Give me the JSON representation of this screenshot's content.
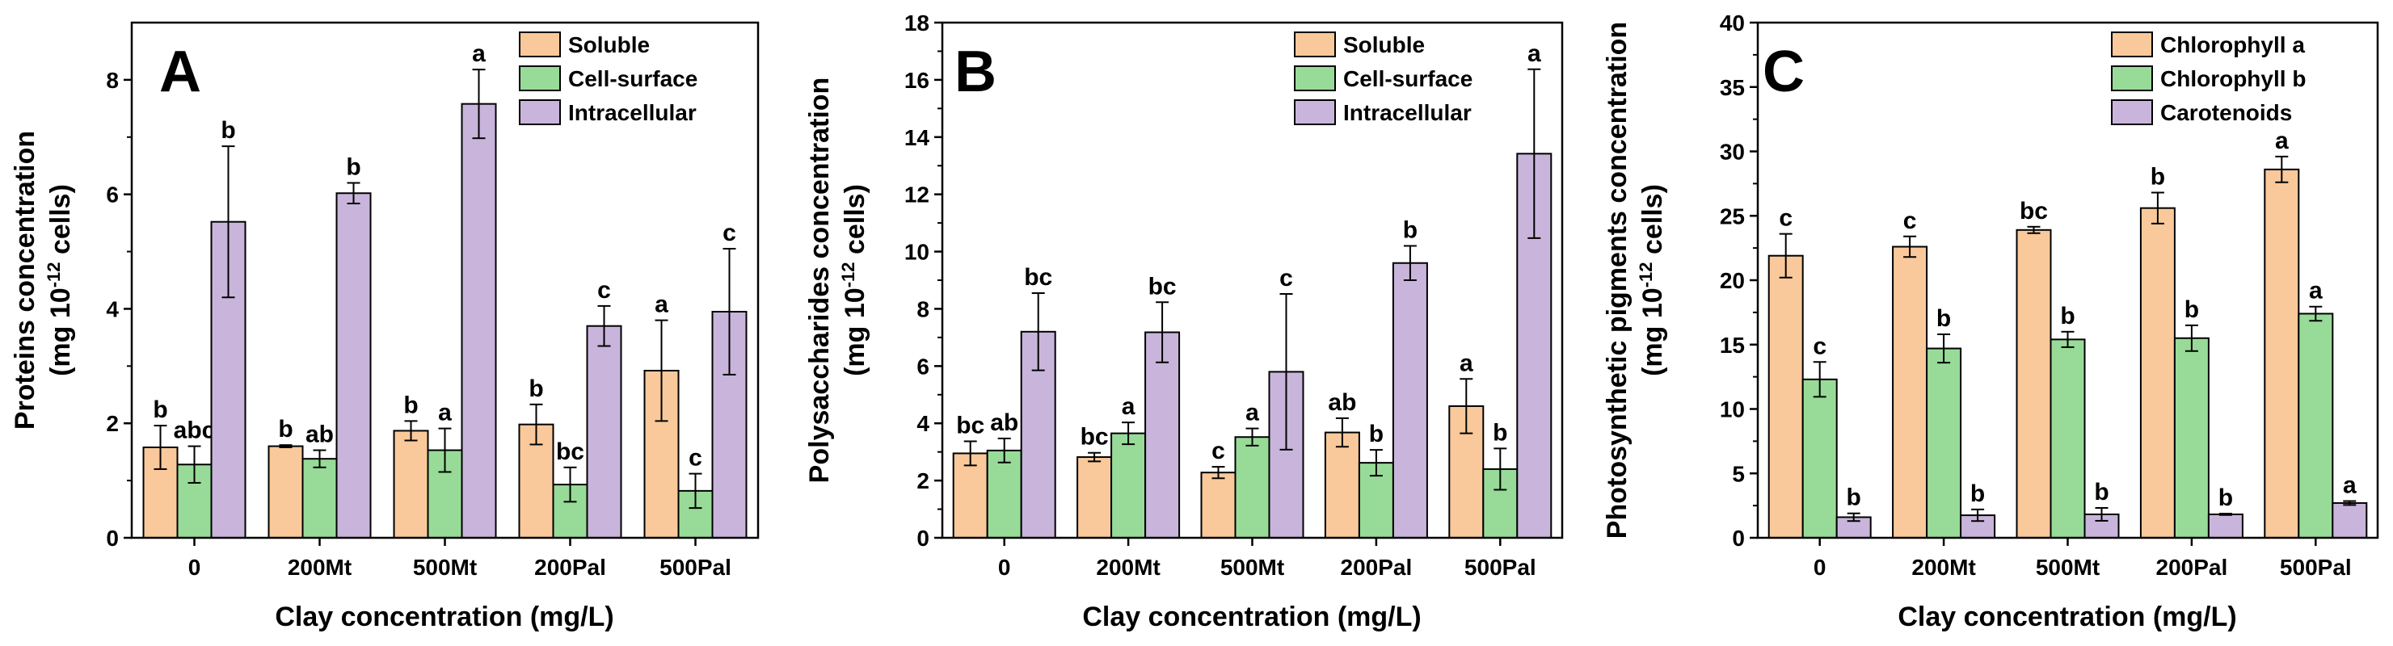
{
  "colors": {
    "soluble": "#F9C99B",
    "cell_surface": "#98DB98",
    "intracellular": "#C9B5DB",
    "chlorophyll_a": "#F9C99B",
    "chlorophyll_b": "#98DB98",
    "carotenoids": "#C9B5DB"
  },
  "xlabel": "Clay concentration (mg/L)",
  "chart_data": [
    {
      "type": "bar",
      "panel": "A",
      "title": "",
      "xlabel": "Clay concentration (mg/L)",
      "ylabel_main": "Proteins concentration",
      "ylabel_unit_prefix": "(mg 10",
      "ylabel_unit_sup": "-12",
      "ylabel_unit_suffix": " cells)",
      "ylim": [
        0,
        9
      ],
      "yticks": [
        0,
        2,
        4,
        6,
        8
      ],
      "ytick_labels": [
        "0",
        "2",
        "4",
        "6",
        "8"
      ],
      "categories": [
        "0",
        "200Mt",
        "500Mt",
        "200Pal",
        "500Pal"
      ],
      "series": [
        {
          "name": "Soluble",
          "color_key": "soluble",
          "values": [
            1.58,
            1.6,
            1.87,
            1.98,
            2.92
          ],
          "errors": [
            0.38,
            0.02,
            0.17,
            0.35,
            0.88
          ],
          "labels": [
            "b",
            "b",
            "b",
            "b",
            "a"
          ]
        },
        {
          "name": "Cell-surface",
          "color_key": "cell_surface",
          "values": [
            1.28,
            1.38,
            1.53,
            0.93,
            0.82
          ],
          "errors": [
            0.32,
            0.15,
            0.38,
            0.3,
            0.3
          ],
          "labels": [
            "abc",
            "ab",
            "a",
            "bc",
            "c"
          ]
        },
        {
          "name": "Intracellular",
          "color_key": "intracellular",
          "values": [
            5.52,
            6.02,
            7.58,
            3.7,
            3.95
          ],
          "errors": [
            1.32,
            0.18,
            0.6,
            0.35,
            1.1
          ],
          "labels": [
            "b",
            "b",
            "a",
            "c",
            "c"
          ]
        }
      ],
      "legend_position": "top-right"
    },
    {
      "type": "bar",
      "panel": "B",
      "title": "",
      "xlabel": "Clay concentration (mg/L)",
      "ylabel_main": "Polysaccharides concentration",
      "ylabel_unit_prefix": "(mg 10",
      "ylabel_unit_sup": "-12",
      "ylabel_unit_suffix": " cells)",
      "ylim": [
        0,
        18
      ],
      "yticks": [
        0,
        2,
        4,
        6,
        8,
        10,
        12,
        14,
        16,
        18
      ],
      "ytick_labels": [
        "0",
        "2",
        "4",
        "6",
        "8",
        "10",
        "12",
        "14",
        "16",
        "18"
      ],
      "categories": [
        "0",
        "200Mt",
        "500Mt",
        "200Pal",
        "500Pal"
      ],
      "series": [
        {
          "name": "Soluble",
          "color_key": "soluble",
          "values": [
            2.95,
            2.82,
            2.28,
            3.68,
            4.6
          ],
          "errors": [
            0.42,
            0.15,
            0.2,
            0.5,
            0.95
          ],
          "labels": [
            "bc",
            "bc",
            "c",
            "ab",
            "a"
          ]
        },
        {
          "name": "Cell-surface",
          "color_key": "cell_surface",
          "values": [
            3.05,
            3.65,
            3.52,
            2.62,
            2.4
          ],
          "errors": [
            0.42,
            0.38,
            0.3,
            0.45,
            0.72
          ],
          "labels": [
            "ab",
            "a",
            "a",
            "b",
            "b"
          ]
        },
        {
          "name": "Intracellular",
          "color_key": "intracellular",
          "values": [
            7.2,
            7.18,
            5.8,
            9.6,
            13.42
          ],
          "errors": [
            1.35,
            1.05,
            2.72,
            0.6,
            2.95
          ],
          "labels": [
            "bc",
            "bc",
            "c",
            "b",
            "a"
          ]
        }
      ],
      "legend_position": "top-right"
    },
    {
      "type": "bar",
      "panel": "C",
      "title": "",
      "xlabel": "Clay concentration (mg/L)",
      "ylabel_main": "Photosynthetic pigments concentration",
      "ylabel_unit_prefix": "(mg 10",
      "ylabel_unit_sup": "-12",
      "ylabel_unit_suffix": " cells)",
      "ylim": [
        0,
        40
      ],
      "yticks": [
        0,
        5,
        10,
        15,
        20,
        25,
        30,
        35,
        40
      ],
      "ytick_labels": [
        "0",
        "5",
        "10",
        "15",
        "20",
        "25",
        "30",
        "35",
        "40"
      ],
      "categories": [
        "0",
        "200Mt",
        "500Mt",
        "200Pal",
        "500Pal"
      ],
      "series": [
        {
          "name": "Chlorophyll a",
          "color_key": "chlorophyll_a",
          "values": [
            21.9,
            22.6,
            23.9,
            25.6,
            28.6
          ],
          "errors": [
            1.7,
            0.8,
            0.25,
            1.2,
            1.0
          ],
          "labels": [
            "c",
            "c",
            "bc",
            "b",
            "a"
          ]
        },
        {
          "name": "Chlorophyll b",
          "color_key": "chlorophyll_b",
          "values": [
            12.3,
            14.7,
            15.4,
            15.5,
            17.4
          ],
          "errors": [
            1.35,
            1.1,
            0.6,
            1.0,
            0.55
          ],
          "labels": [
            "c",
            "b",
            "b",
            "b",
            "a"
          ]
        },
        {
          "name": "Carotenoids",
          "color_key": "carotenoids",
          "values": [
            1.6,
            1.75,
            1.82,
            1.82,
            2.7
          ],
          "errors": [
            0.3,
            0.45,
            0.5,
            0.05,
            0.15
          ],
          "labels": [
            "b",
            "b",
            "b",
            "b",
            "a"
          ]
        }
      ],
      "legend_position": "top-right"
    }
  ]
}
